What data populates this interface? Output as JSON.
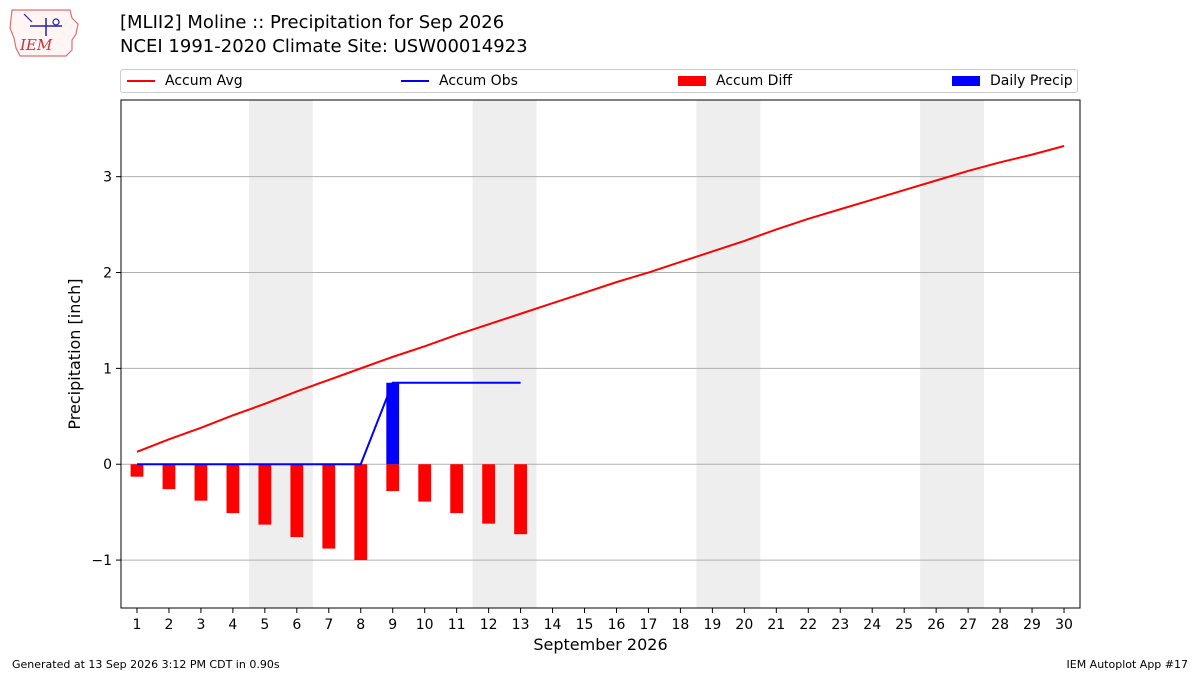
{
  "header": {
    "title_line1": "[MLII2] Moline :: Precipitation for Sep 2026",
    "title_line2": "NCEI 1991-2020 Climate Site: USW00014923",
    "logo_text": "IEM"
  },
  "legend": {
    "items": [
      {
        "label": "Accum Avg",
        "kind": "line",
        "color": "#ff0000"
      },
      {
        "label": "Accum Obs",
        "kind": "line",
        "color": "#0000ff"
      },
      {
        "label": "Accum Diff",
        "kind": "bar",
        "color": "#ff0000"
      },
      {
        "label": "Daily Precip",
        "kind": "bar",
        "color": "#0000ff"
      }
    ]
  },
  "footer": {
    "left": "Generated at 13 Sep 2026 3:12 PM CDT in 0.90s",
    "right": "IEM Autoplot App #17"
  },
  "chart_data": {
    "type": "bar",
    "xlabel": "September 2026",
    "ylabel": "Precipitation [inch]",
    "xlim": [
      0.5,
      30.5
    ],
    "ylim": [
      -1.5,
      3.8
    ],
    "x_ticks": [
      1,
      2,
      3,
      4,
      5,
      6,
      7,
      8,
      9,
      10,
      11,
      12,
      13,
      14,
      15,
      16,
      17,
      18,
      19,
      20,
      21,
      22,
      23,
      24,
      25,
      26,
      27,
      28,
      29,
      30
    ],
    "y_ticks": [
      -1,
      0,
      1,
      2,
      3
    ],
    "y_tick_labels": [
      "−1",
      "0",
      "1",
      "2",
      "3"
    ],
    "grid": "horizontal",
    "legend_position": "top",
    "weekend_shading": [
      [
        4.5,
        6.5
      ],
      [
        11.5,
        13.5
      ],
      [
        18.5,
        20.5
      ],
      [
        25.5,
        27.5
      ]
    ],
    "days": [
      1,
      2,
      3,
      4,
      5,
      6,
      7,
      8,
      9,
      10,
      11,
      12,
      13,
      14,
      15,
      16,
      17,
      18,
      19,
      20,
      21,
      22,
      23,
      24,
      25,
      26,
      27,
      28,
      29,
      30
    ],
    "series": [
      {
        "name": "Accum Avg",
        "kind": "line",
        "color": "#ff0000",
        "values": [
          0.13,
          0.26,
          0.38,
          0.51,
          0.63,
          0.76,
          0.88,
          1.0,
          1.12,
          1.23,
          1.35,
          1.46,
          1.57,
          1.68,
          1.79,
          1.9,
          2.0,
          2.11,
          2.22,
          2.33,
          2.45,
          2.56,
          2.66,
          2.76,
          2.86,
          2.96,
          3.06,
          3.15,
          3.23,
          3.32
        ]
      },
      {
        "name": "Accum Obs",
        "kind": "line",
        "color": "#0000ff",
        "values": [
          0,
          0,
          0,
          0,
          0,
          0,
          0,
          0,
          0.85,
          0.85,
          0.85,
          0.85,
          0.85
        ]
      },
      {
        "name": "Accum Diff",
        "kind": "bar",
        "color": "#ff0000",
        "values": [
          -0.13,
          -0.26,
          -0.38,
          -0.51,
          -0.63,
          -0.76,
          -0.88,
          -1.0,
          -0.28,
          -0.39,
          -0.51,
          -0.62,
          -0.73
        ]
      },
      {
        "name": "Daily Precip",
        "kind": "bar",
        "color": "#0000ff",
        "values": [
          0,
          0,
          0,
          0,
          0,
          0,
          0,
          0,
          0.85,
          0,
          0,
          0,
          0
        ]
      }
    ]
  }
}
